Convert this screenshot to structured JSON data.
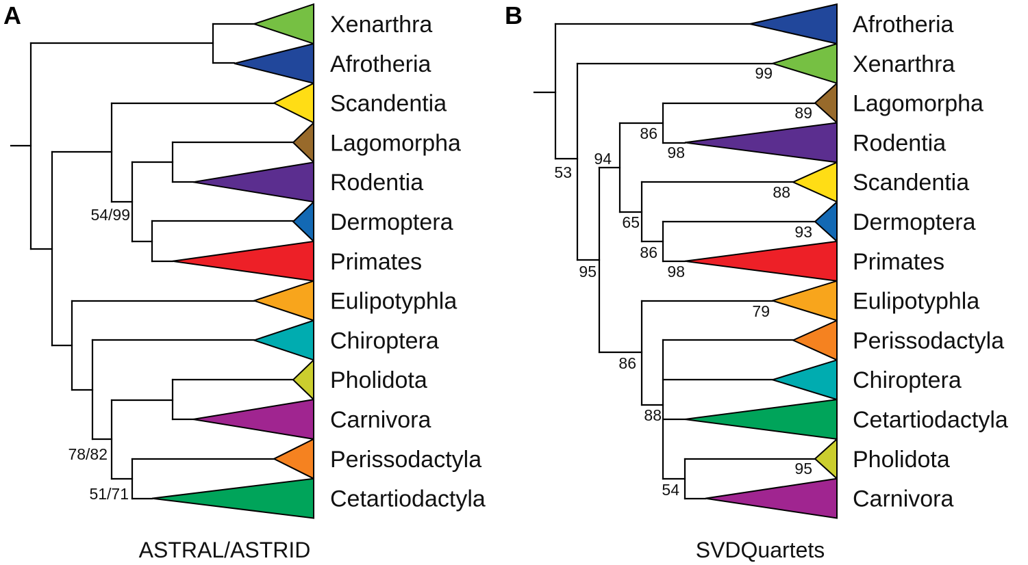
{
  "panels": [
    {
      "letter": "A",
      "method": "ASTRAL/ASTRID",
      "taxa": [
        {
          "name": "Xenarthra",
          "color": "#76c043"
        },
        {
          "name": "Afrotheria",
          "color": "#21479b"
        },
        {
          "name": "Scandentia",
          "color": "#ffdd15"
        },
        {
          "name": "Lagomorpha",
          "color": "#986a2b"
        },
        {
          "name": "Rodentia",
          "color": "#5b2e8f"
        },
        {
          "name": "Dermoptera",
          "color": "#1369b4"
        },
        {
          "name": "Primates",
          "color": "#ed2027"
        },
        {
          "name": "Eulipotyphla",
          "color": "#f8a51c"
        },
        {
          "name": "Chiroptera",
          "color": "#00acb0"
        },
        {
          "name": "Pholidota",
          "color": "#cbce2e"
        },
        {
          "name": "Carnivora",
          "color": "#a02590"
        },
        {
          "name": "Perissodactyla",
          "color": "#f58220"
        },
        {
          "name": "Cetartiodactyla",
          "color": "#00a45a"
        }
      ],
      "supports": [
        "54/99",
        "78/82",
        "51/71"
      ]
    },
    {
      "letter": "B",
      "method": "SVDQuartets",
      "taxa": [
        {
          "name": "Afrotheria",
          "color": "#21479b"
        },
        {
          "name": "Xenarthra",
          "color": "#76c043"
        },
        {
          "name": "Lagomorpha",
          "color": "#986a2b"
        },
        {
          "name": "Rodentia",
          "color": "#5b2e8f"
        },
        {
          "name": "Scandentia",
          "color": "#ffdd15"
        },
        {
          "name": "Dermoptera",
          "color": "#1369b4"
        },
        {
          "name": "Primates",
          "color": "#ed2027"
        },
        {
          "name": "Eulipotyphla",
          "color": "#f8a51c"
        },
        {
          "name": "Perissodactyla",
          "color": "#f58220"
        },
        {
          "name": "Chiroptera",
          "color": "#00acb0"
        },
        {
          "name": "Cetartiodactyla",
          "color": "#00a45a"
        },
        {
          "name": "Pholidota",
          "color": "#cbce2e"
        },
        {
          "name": "Carnivora",
          "color": "#a02590"
        }
      ],
      "supports": [
        "53",
        "99",
        "89",
        "98",
        "94",
        "86",
        "88",
        "65",
        "93",
        "86",
        "98",
        "95",
        "79",
        "86",
        "88",
        "95",
        "54"
      ]
    }
  ]
}
